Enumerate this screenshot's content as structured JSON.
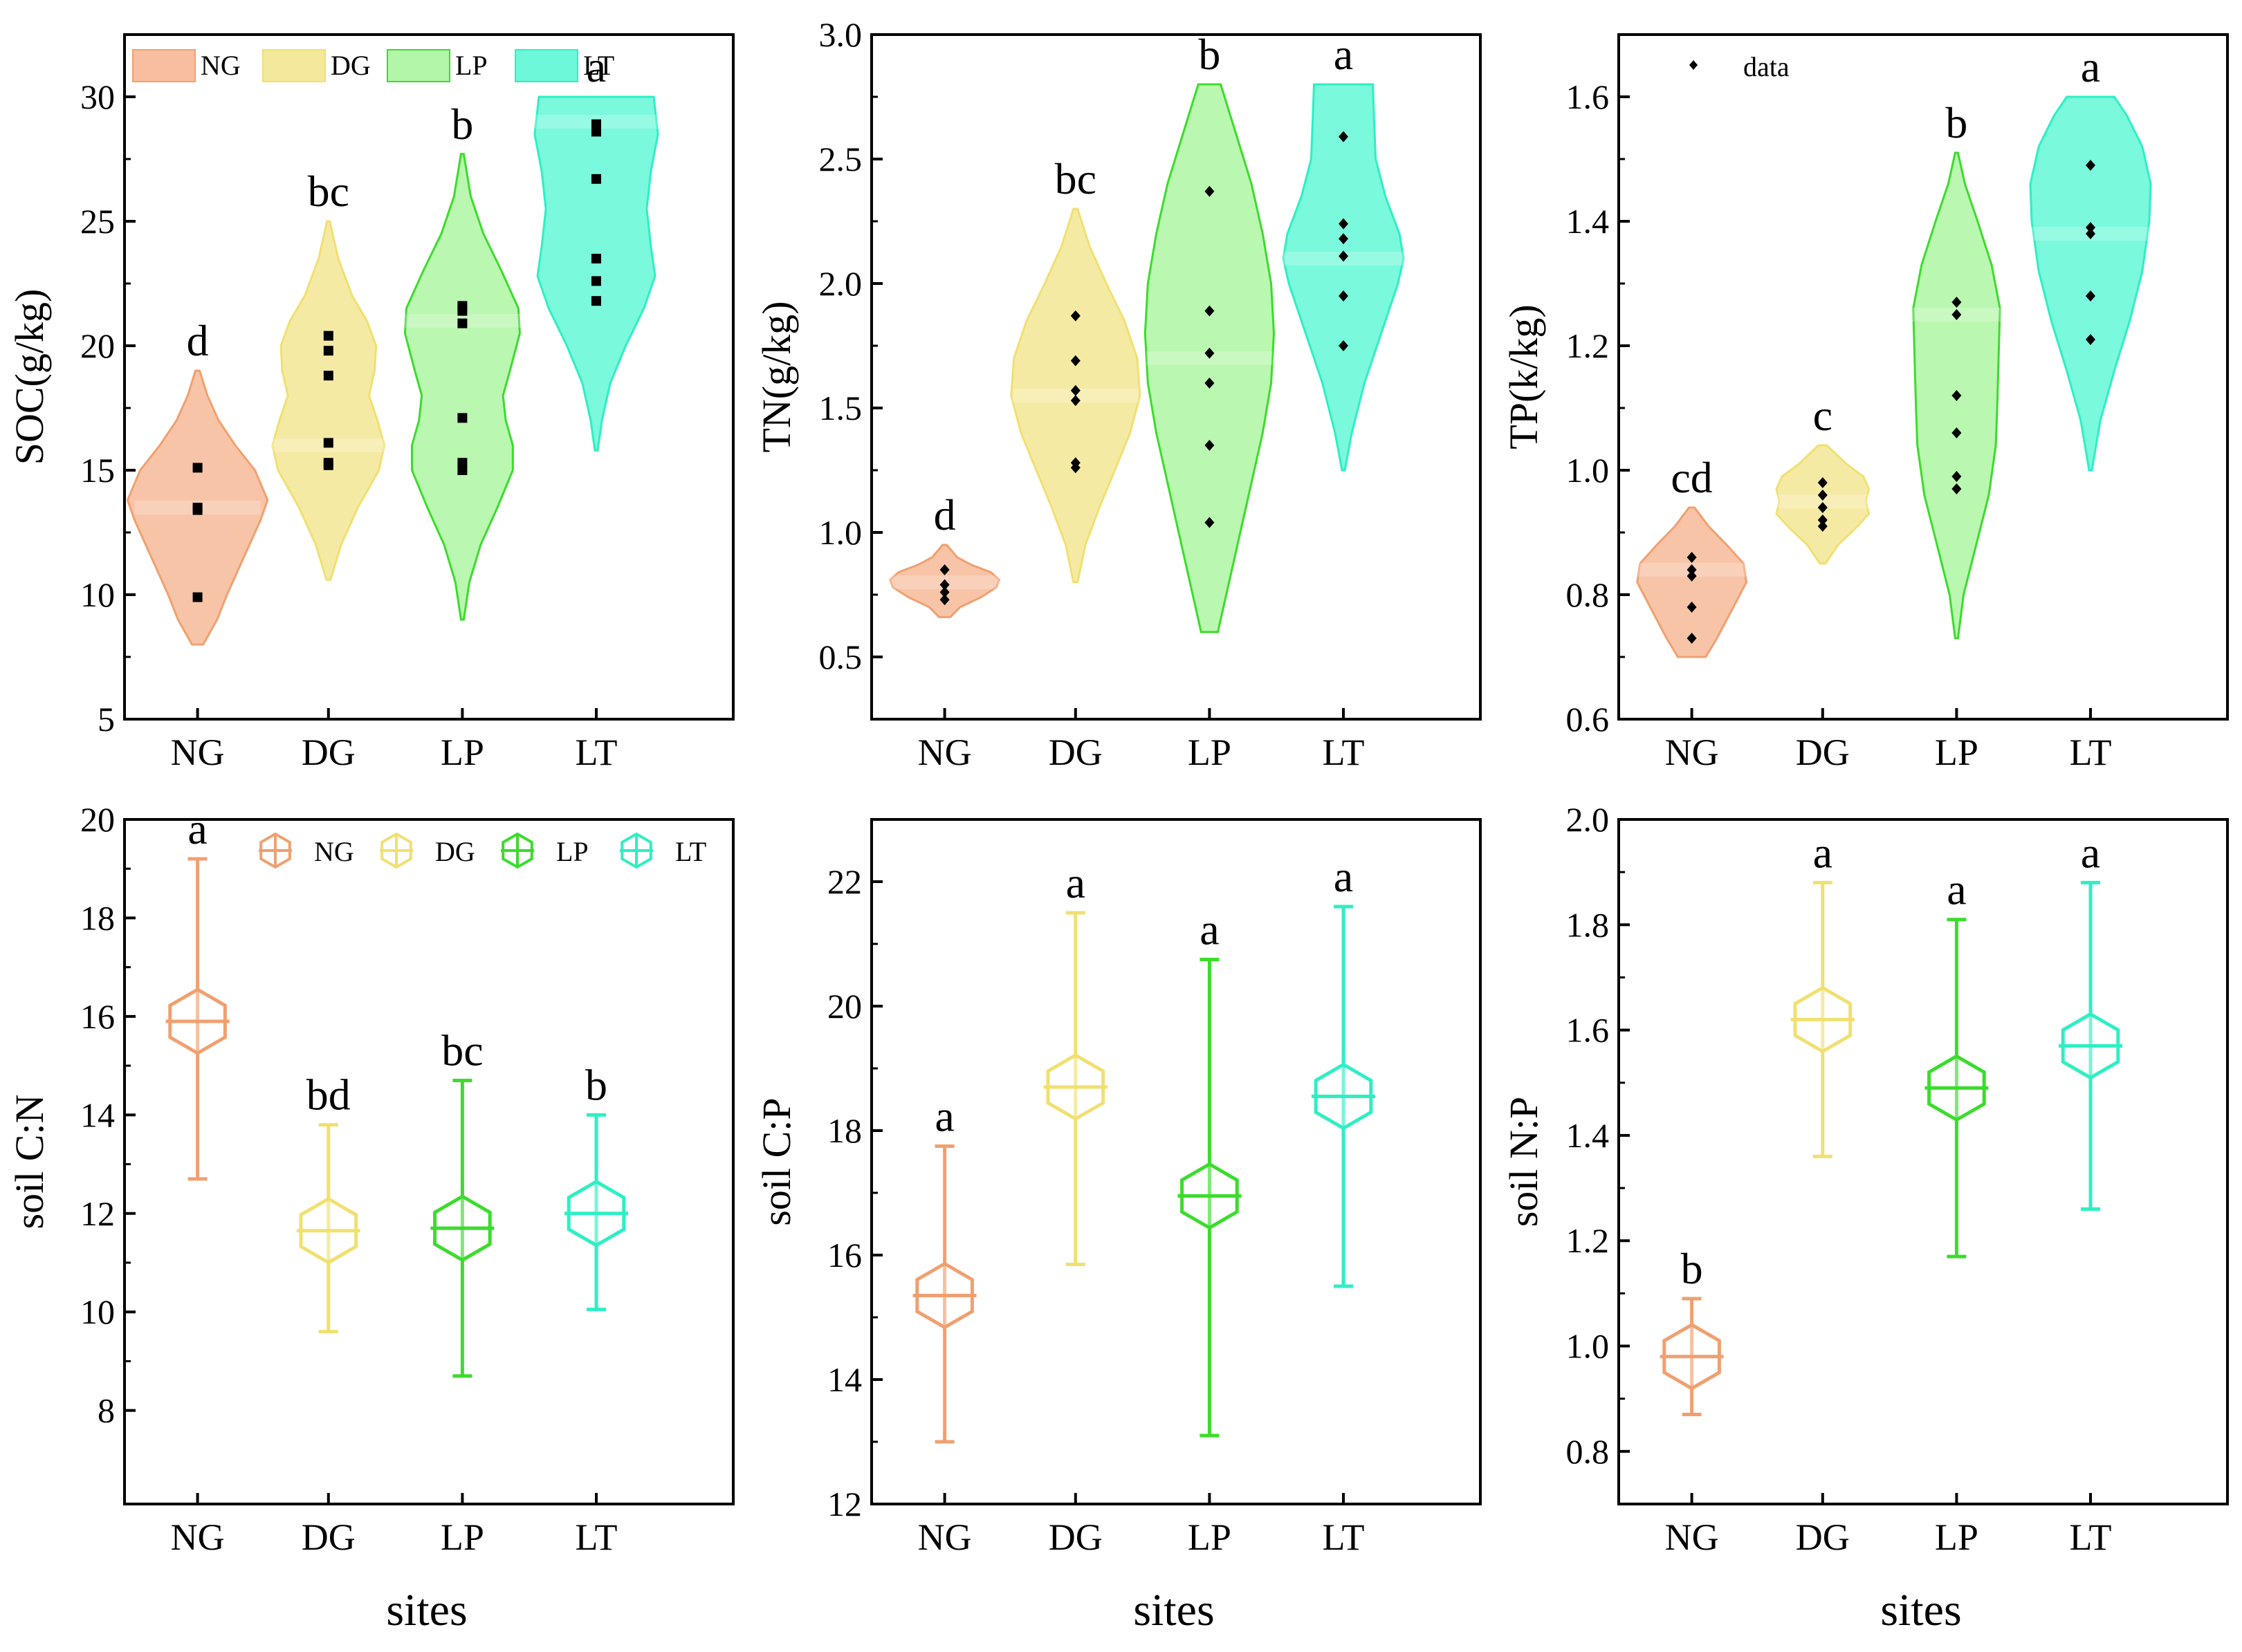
{
  "colors": {
    "NG": "#F6B48E",
    "DG": "#F2E48A",
    "LP": "#A6F59A",
    "LT": "#54F7D2"
  },
  "outline_colors": {
    "NG": "#F0A070",
    "DG": "#F0E070",
    "LP": "#3BDC2C",
    "LT": "#2EEFC4"
  },
  "panels": [
    {
      "id": "soc",
      "chart_data": {
        "type": "violin",
        "ylabel": "SOC(g/kg)",
        "ylim": [
          5,
          32.5
        ],
        "yticks": [
          5,
          10,
          15,
          20,
          25,
          30
        ],
        "categories": [
          "NG",
          "DG",
          "LP",
          "LT"
        ],
        "legend": {
          "entries": [
            "NG",
            "DG",
            "LP",
            "LT"
          ],
          "placement": "top-left"
        },
        "marker": "square",
        "series": [
          {
            "name": "NG",
            "min": 8.0,
            "max": 19.0,
            "mode": 13.5,
            "points": [
              15.1,
              13.5,
              13.4,
              9.9
            ],
            "letter": "d",
            "violin": [
              [
                8,
                0.08
              ],
              [
                9,
                0.28
              ],
              [
                10,
                0.42
              ],
              [
                11,
                0.58
              ],
              [
                12,
                0.74
              ],
              [
                13,
                0.9
              ],
              [
                13.8,
                1.0
              ],
              [
                15,
                0.82
              ],
              [
                16,
                0.54
              ],
              [
                17,
                0.3
              ],
              [
                18,
                0.14
              ],
              [
                19,
                0.03
              ]
            ]
          },
          {
            "name": "DG",
            "min": 10.6,
            "max": 25.0,
            "mode": 16,
            "points": [
              20.4,
              19.8,
              18.8,
              16.1,
              15.3,
              15.2
            ],
            "letter": "bc",
            "violin": [
              [
                10.6,
                0.03
              ],
              [
                12,
                0.18
              ],
              [
                13.5,
                0.42
              ],
              [
                15,
                0.72
              ],
              [
                16,
                0.8
              ],
              [
                17,
                0.7
              ],
              [
                18,
                0.58
              ],
              [
                19,
                0.66
              ],
              [
                20,
                0.68
              ],
              [
                21,
                0.55
              ],
              [
                22,
                0.34
              ],
              [
                23.5,
                0.14
              ],
              [
                25,
                0.02
              ]
            ]
          },
          {
            "name": "LP",
            "min": 9.0,
            "max": 27.7,
            "mode": 21,
            "points": [
              21.6,
              21.4,
              20.9,
              17.1,
              15.3,
              15.0
            ],
            "letter": "b",
            "violin": [
              [
                9,
                0.02
              ],
              [
                10.5,
                0.1
              ],
              [
                12,
                0.26
              ],
              [
                13.5,
                0.5
              ],
              [
                15,
                0.72
              ],
              [
                16,
                0.72
              ],
              [
                17,
                0.62
              ],
              [
                18,
                0.58
              ],
              [
                19,
                0.68
              ],
              [
                20.5,
                0.82
              ],
              [
                21.5,
                0.8
              ],
              [
                23,
                0.56
              ],
              [
                24.5,
                0.3
              ],
              [
                26,
                0.12
              ],
              [
                27.7,
                0.02
              ]
            ]
          },
          {
            "name": "LT",
            "min": 15.8,
            "max": 30.0,
            "mode": 29,
            "points": [
              28.9,
              28.6,
              26.7,
              23.5,
              22.6,
              21.8
            ],
            "letter": "a",
            "violin": [
              [
                15.8,
                0.02
              ],
              [
                17,
                0.08
              ],
              [
                18.5,
                0.2
              ],
              [
                20,
                0.42
              ],
              [
                21.5,
                0.68
              ],
              [
                22.8,
                0.84
              ],
              [
                24,
                0.78
              ],
              [
                25.5,
                0.72
              ],
              [
                27,
                0.78
              ],
              [
                28.5,
                0.88
              ],
              [
                30,
                0.82
              ]
            ]
          }
        ]
      }
    },
    {
      "id": "tn",
      "chart_data": {
        "type": "violin",
        "ylabel": "TN(g/kg)",
        "ylim": [
          0.25,
          3.0
        ],
        "yticks": [
          0.5,
          1.0,
          1.5,
          2.0,
          2.5,
          3.0
        ],
        "categories": [
          "NG",
          "DG",
          "LP",
          "LT"
        ],
        "marker": "diamond",
        "series": [
          {
            "name": "NG",
            "min": 0.66,
            "max": 0.95,
            "mode": 0.8,
            "points": [
              0.85,
              0.79,
              0.76,
              0.73
            ],
            "letter": "d",
            "violin": [
              [
                0.66,
                0.08
              ],
              [
                0.7,
                0.22
              ],
              [
                0.74,
                0.52
              ],
              [
                0.78,
                0.74
              ],
              [
                0.81,
                0.78
              ],
              [
                0.84,
                0.66
              ],
              [
                0.87,
                0.38
              ],
              [
                0.9,
                0.18
              ],
              [
                0.95,
                0.03
              ]
            ]
          },
          {
            "name": "DG",
            "min": 0.8,
            "max": 2.3,
            "mode": 1.55,
            "points": [
              1.87,
              1.69,
              1.57,
              1.53,
              1.28,
              1.26
            ],
            "letter": "bc",
            "violin": [
              [
                0.8,
                0.03
              ],
              [
                0.95,
                0.14
              ],
              [
                1.1,
                0.34
              ],
              [
                1.25,
                0.56
              ],
              [
                1.4,
                0.78
              ],
              [
                1.55,
                0.92
              ],
              [
                1.7,
                0.88
              ],
              [
                1.85,
                0.7
              ],
              [
                2.0,
                0.44
              ],
              [
                2.15,
                0.2
              ],
              [
                2.3,
                0.03
              ]
            ]
          },
          {
            "name": "LP",
            "min": 0.6,
            "max": 2.8,
            "mode": 1.7,
            "points": [
              2.37,
              1.89,
              1.72,
              1.6,
              1.35,
              1.04
            ],
            "letter": "b",
            "violin": [
              [
                0.6,
                0.12
              ],
              [
                0.8,
                0.28
              ],
              [
                1.0,
                0.44
              ],
              [
                1.2,
                0.6
              ],
              [
                1.4,
                0.76
              ],
              [
                1.6,
                0.88
              ],
              [
                1.8,
                0.92
              ],
              [
                2.0,
                0.88
              ],
              [
                2.2,
                0.76
              ],
              [
                2.4,
                0.6
              ],
              [
                2.6,
                0.38
              ],
              [
                2.8,
                0.16
              ]
            ]
          },
          {
            "name": "LT",
            "min": 1.25,
            "max": 2.8,
            "mode": 2.1,
            "points": [
              2.59,
              2.24,
              2.18,
              2.11,
              1.95,
              1.75
            ],
            "letter": "a",
            "violin": [
              [
                1.25,
                0.02
              ],
              [
                1.4,
                0.12
              ],
              [
                1.6,
                0.3
              ],
              [
                1.8,
                0.54
              ],
              [
                2.0,
                0.78
              ],
              [
                2.1,
                0.86
              ],
              [
                2.2,
                0.8
              ],
              [
                2.35,
                0.6
              ],
              [
                2.5,
                0.46
              ],
              [
                2.65,
                0.44
              ],
              [
                2.8,
                0.42
              ]
            ]
          }
        ]
      }
    },
    {
      "id": "tp",
      "chart_data": {
        "type": "violin",
        "ylabel": "TP(k/kg)",
        "ylim": [
          0.6,
          1.7
        ],
        "yticks": [
          0.6,
          0.8,
          1.0,
          1.2,
          1.4,
          1.6
        ],
        "categories": [
          "NG",
          "DG",
          "LP",
          "LT"
        ],
        "legend": {
          "entries": [
            "data"
          ],
          "placement": "top-left"
        },
        "marker": "diamond",
        "series": [
          {
            "name": "NG",
            "min": 0.7,
            "max": 0.94,
            "mode": 0.84,
            "points": [
              0.86,
              0.84,
              0.83,
              0.78,
              0.73
            ],
            "letter": "cd",
            "violin": [
              [
                0.7,
                0.2
              ],
              [
                0.73,
                0.36
              ],
              [
                0.76,
                0.5
              ],
              [
                0.79,
                0.64
              ],
              [
                0.82,
                0.78
              ],
              [
                0.85,
                0.74
              ],
              [
                0.88,
                0.5
              ],
              [
                0.91,
                0.24
              ],
              [
                0.94,
                0.04
              ]
            ]
          },
          {
            "name": "DG",
            "min": 0.85,
            "max": 1.04,
            "mode": 0.95,
            "points": [
              0.98,
              0.96,
              0.94,
              0.92,
              0.91
            ],
            "letter": "c",
            "violin": [
              [
                0.85,
                0.04
              ],
              [
                0.88,
                0.22
              ],
              [
                0.91,
                0.5
              ],
              [
                0.93,
                0.66
              ],
              [
                0.95,
                0.62
              ],
              [
                0.97,
                0.66
              ],
              [
                0.99,
                0.58
              ],
              [
                1.01,
                0.34
              ],
              [
                1.04,
                0.06
              ]
            ]
          },
          {
            "name": "LP",
            "min": 0.73,
            "max": 1.51,
            "mode": 1.25,
            "points": [
              1.27,
              1.25,
              1.12,
              1.06,
              0.99,
              0.97
            ],
            "letter": "b",
            "violin": [
              [
                0.73,
                0.02
              ],
              [
                0.8,
                0.1
              ],
              [
                0.88,
                0.28
              ],
              [
                0.96,
                0.46
              ],
              [
                1.04,
                0.56
              ],
              [
                1.1,
                0.58
              ],
              [
                1.18,
                0.6
              ],
              [
                1.26,
                0.62
              ],
              [
                1.33,
                0.5
              ],
              [
                1.4,
                0.3
              ],
              [
                1.46,
                0.12
              ],
              [
                1.51,
                0.02
              ]
            ]
          },
          {
            "name": "LT",
            "min": 1.0,
            "max": 1.6,
            "mode": 1.38,
            "points": [
              1.49,
              1.39,
              1.38,
              1.28,
              1.21
            ],
            "letter": "a",
            "violin": [
              [
                1.0,
                0.02
              ],
              [
                1.08,
                0.14
              ],
              [
                1.16,
                0.34
              ],
              [
                1.24,
                0.56
              ],
              [
                1.32,
                0.74
              ],
              [
                1.4,
                0.84
              ],
              [
                1.46,
                0.86
              ],
              [
                1.52,
                0.74
              ],
              [
                1.57,
                0.52
              ],
              [
                1.6,
                0.34
              ]
            ]
          }
        ]
      }
    },
    {
      "id": "cn",
      "chart_data": {
        "type": "errorbar",
        "ylabel": "soil C:N",
        "ylim": [
          6.1,
          20
        ],
        "yticks": [
          8,
          10,
          12,
          14,
          16,
          18,
          20
        ],
        "categories": [
          "NG",
          "DG",
          "LP",
          "LT"
        ],
        "legend": {
          "entries": [
            "NG",
            "DG",
            "LP",
            "LT"
          ],
          "placement": "top-right"
        },
        "series": [
          {
            "name": "NG",
            "mean": 15.9,
            "low": 12.7,
            "high": 19.2,
            "letter": "a"
          },
          {
            "name": "DG",
            "mean": 11.65,
            "low": 9.6,
            "high": 13.8,
            "letter": "bd"
          },
          {
            "name": "LP",
            "mean": 11.7,
            "low": 8.7,
            "high": 14.7,
            "letter": "bc"
          },
          {
            "name": "LT",
            "mean": 12.0,
            "low": 10.05,
            "high": 14.0,
            "letter": "b"
          }
        ]
      }
    },
    {
      "id": "cp",
      "chart_data": {
        "type": "errorbar",
        "ylabel": "soil C:P",
        "ylim": [
          12,
          23
        ],
        "yticks": [
          12,
          14,
          16,
          18,
          20,
          22
        ],
        "categories": [
          "NG",
          "DG",
          "LP",
          "LT"
        ],
        "series": [
          {
            "name": "NG",
            "mean": 15.35,
            "low": 13.0,
            "high": 17.75,
            "letter": "a"
          },
          {
            "name": "DG",
            "mean": 18.7,
            "low": 15.85,
            "high": 21.5,
            "letter": "a"
          },
          {
            "name": "LP",
            "mean": 16.95,
            "low": 13.1,
            "high": 20.75,
            "letter": "a"
          },
          {
            "name": "LT",
            "mean": 18.55,
            "low": 15.5,
            "high": 21.6,
            "letter": "a"
          }
        ]
      }
    },
    {
      "id": "np",
      "chart_data": {
        "type": "errorbar",
        "ylabel": "soil N:P",
        "ylim": [
          0.7,
          2.0
        ],
        "yticks": [
          0.8,
          1.0,
          1.2,
          1.4,
          1.6,
          1.8,
          2.0
        ],
        "categories": [
          "NG",
          "DG",
          "LP",
          "LT"
        ],
        "series": [
          {
            "name": "NG",
            "mean": 0.98,
            "low": 0.87,
            "high": 1.09,
            "letter": "b"
          },
          {
            "name": "DG",
            "mean": 1.62,
            "low": 1.36,
            "high": 1.88,
            "letter": "a"
          },
          {
            "name": "LP",
            "mean": 1.49,
            "low": 1.17,
            "high": 1.81,
            "letter": "a"
          },
          {
            "name": "LT",
            "mean": 1.57,
            "low": 1.26,
            "high": 1.88,
            "letter": "a"
          }
        ]
      }
    }
  ],
  "xlabels": [
    "sites",
    "sites",
    "sites"
  ]
}
